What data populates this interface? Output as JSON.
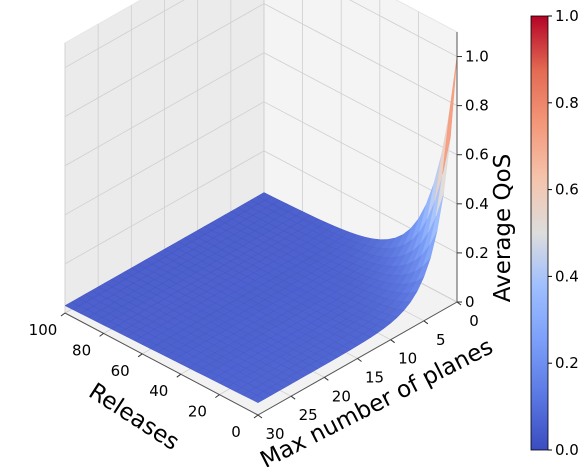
{
  "chart_data": {
    "type": "surface3d",
    "title": "",
    "xlabel": "Releases",
    "ylabel": "Max number of planes",
    "zlabel": "Average QoS",
    "x_ticks": [
      "100",
      "80",
      "60",
      "40",
      "20",
      "0"
    ],
    "y_ticks": [
      "0",
      "5",
      "10",
      "15",
      "20",
      "25",
      "30"
    ],
    "z_ticks": [
      "0",
      "0.2",
      "0.4",
      "0.6",
      "0.8",
      "1.0"
    ],
    "colorbar_ticks": [
      "0.0",
      "0.2",
      "0.4",
      "0.6",
      "0.8",
      "1.0"
    ],
    "colormap": "coolwarm",
    "colors": {
      "cool": "#3b4cc0",
      "mid": "#dddddd",
      "warm": "#b40426",
      "pane": "#f2f2f2",
      "grid": "#cfcfcf"
    },
    "xlim": [
      0,
      100
    ],
    "ylim": [
      0,
      30
    ],
    "zlim": [
      0,
      1
    ],
    "grid": true,
    "z_function": "QoS ≈ (0.05 + 0.95·exp(-X/14)·exp(-Y/2.5))·(1 - 0.4·X/100) where X = releases, Y = max number of planes"
  }
}
